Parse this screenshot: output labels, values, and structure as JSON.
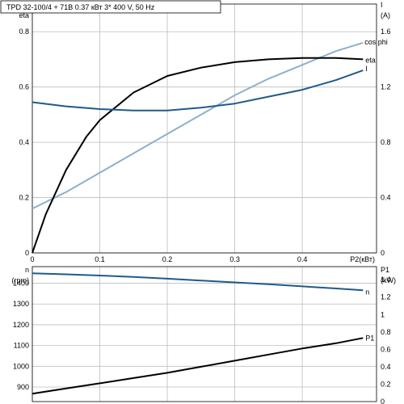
{
  "header": "TPD 32-100/4 + 71B    0.37 кВт    3* 400 V, 50 Hz",
  "colors": {
    "eta": "#000000",
    "I": "#1f5a8c",
    "cos_phi": "#8fb0cc",
    "n": "#1f5a8c",
    "P1": "#000000",
    "grid": "#bdbdbd"
  },
  "chart_data": [
    {
      "type": "line",
      "title": "TPD 32-100/4 + 71B    0.37 кВт    3* 400 V, 50 Hz",
      "xlabel": "P2(кВт)",
      "ylabel_left_1": "cos phi",
      "ylabel_left_2": "eta",
      "ylabel_right_1": "I",
      "ylabel_right_2": "(A)",
      "xlim": [
        0,
        0.51
      ],
      "ylim_left": [
        0,
        0.9
      ],
      "ylim_right": [
        0,
        1.8
      ],
      "x_ticks": [
        "0",
        "0.1",
        "0.2",
        "0.3",
        "0.4",
        "P2(кВт)"
      ],
      "y_left_ticks": [
        "0",
        "0.2",
        "0.4",
        "0.6",
        "0.8"
      ],
      "y_right_ticks": [
        "0",
        "0.4",
        "0.8",
        "1.2",
        "1.6"
      ],
      "grid": true,
      "series": [
        {
          "name": "cos phi",
          "axis": "left",
          "x": [
            0,
            0.05,
            0.1,
            0.15,
            0.2,
            0.25,
            0.3,
            0.35,
            0.4,
            0.45,
            0.49
          ],
          "y": [
            0.16,
            0.22,
            0.29,
            0.36,
            0.43,
            0.5,
            0.57,
            0.63,
            0.68,
            0.73,
            0.76
          ]
        },
        {
          "name": "eta",
          "axis": "left",
          "x": [
            0,
            0.02,
            0.05,
            0.08,
            0.1,
            0.15,
            0.2,
            0.25,
            0.3,
            0.35,
            0.4,
            0.45,
            0.49
          ],
          "y": [
            0,
            0.14,
            0.3,
            0.42,
            0.48,
            0.58,
            0.64,
            0.67,
            0.69,
            0.7,
            0.705,
            0.705,
            0.7
          ]
        },
        {
          "name": "I",
          "axis": "right",
          "x": [
            0,
            0.05,
            0.1,
            0.15,
            0.2,
            0.25,
            0.3,
            0.35,
            0.4,
            0.45,
            0.49
          ],
          "y": [
            1.09,
            1.06,
            1.04,
            1.03,
            1.03,
            1.05,
            1.08,
            1.13,
            1.18,
            1.25,
            1.32
          ]
        }
      ]
    },
    {
      "type": "line",
      "ylabel_left_1": "n",
      "ylabel_left_2": "(rpm)",
      "ylabel_right_1": "P1",
      "ylabel_right_2": "(kW)",
      "xlim": [
        0,
        0.51
      ],
      "ylim_left": [
        830,
        1480
      ],
      "ylim_right": [
        0,
        1.55
      ],
      "y_left_ticks": [
        "900",
        "1000",
        "1100",
        "1200",
        "1300",
        "1400"
      ],
      "y_right_ticks": [
        "0",
        "0.2",
        "0.4",
        "0.6",
        "0.8",
        "1",
        "1.2",
        "1.4"
      ],
      "grid": true,
      "series": [
        {
          "name": "n",
          "axis": "left",
          "x": [
            0,
            0.05,
            0.1,
            0.15,
            0.2,
            0.25,
            0.3,
            0.35,
            0.4,
            0.45,
            0.49
          ],
          "y": [
            1448,
            1443,
            1437,
            1430,
            1422,
            1413,
            1404,
            1395,
            1385,
            1375,
            1366
          ]
        },
        {
          "name": "P1",
          "axis": "right",
          "x": [
            0,
            0.05,
            0.1,
            0.15,
            0.2,
            0.25,
            0.3,
            0.35,
            0.4,
            0.45,
            0.49
          ],
          "y": [
            0.09,
            0.15,
            0.21,
            0.27,
            0.33,
            0.4,
            0.47,
            0.54,
            0.61,
            0.67,
            0.73
          ]
        }
      ]
    }
  ]
}
